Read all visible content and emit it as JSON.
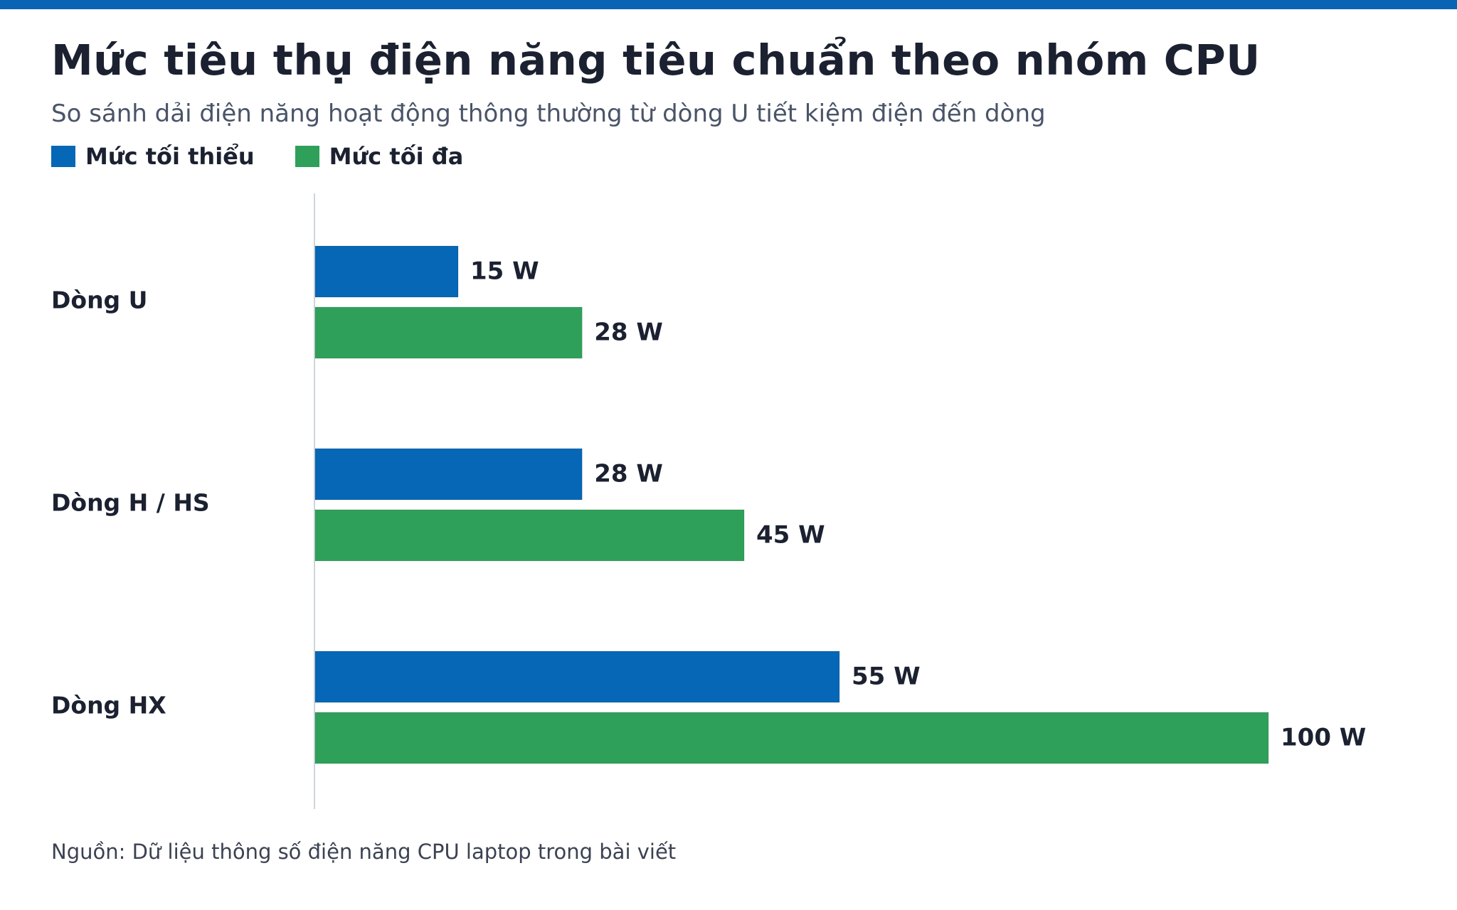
{
  "title": "Mức tiêu thụ điện năng tiêu chuẩn theo nhóm CPU",
  "subtitle": "So sánh dải điện năng hoạt động thông thường từ dòng U tiết kiệm điện đến dòng",
  "source": "Nguồn: Dữ liệu thông số điện năng CPU laptop trong bài viết",
  "colors": {
    "accent_bar": "#0a64b4",
    "min": "#0567b5",
    "max": "#2fa05a",
    "axis": "#cfd3da",
    "label": "#1b2130"
  },
  "chart_data": {
    "type": "bar",
    "orientation": "horizontal",
    "title": "Mức tiêu thụ điện năng tiêu chuẩn theo nhóm CPU",
    "subtitle": "So sánh dải điện năng hoạt động thông thường từ dòng U tiết kiệm điện đến dòng",
    "categories": [
      "Dòng U",
      "Dòng H / HS",
      "Dòng HX"
    ],
    "series": [
      {
        "name": "Mức tối thiểu",
        "values": [
          15,
          28,
          55
        ],
        "color": "#0567b5"
      },
      {
        "name": "Mức tối đa",
        "values": [
          28,
          45,
          100
        ],
        "color": "#2fa05a"
      }
    ],
    "unit": "W",
    "value_labels": [
      [
        "15 W",
        "28 W",
        "55 W"
      ],
      [
        "28 W",
        "45 W",
        "100 W"
      ]
    ],
    "xlim": [
      0,
      100
    ],
    "legend": "top-left",
    "grid": false,
    "xlabel": "",
    "ylabel": ""
  }
}
